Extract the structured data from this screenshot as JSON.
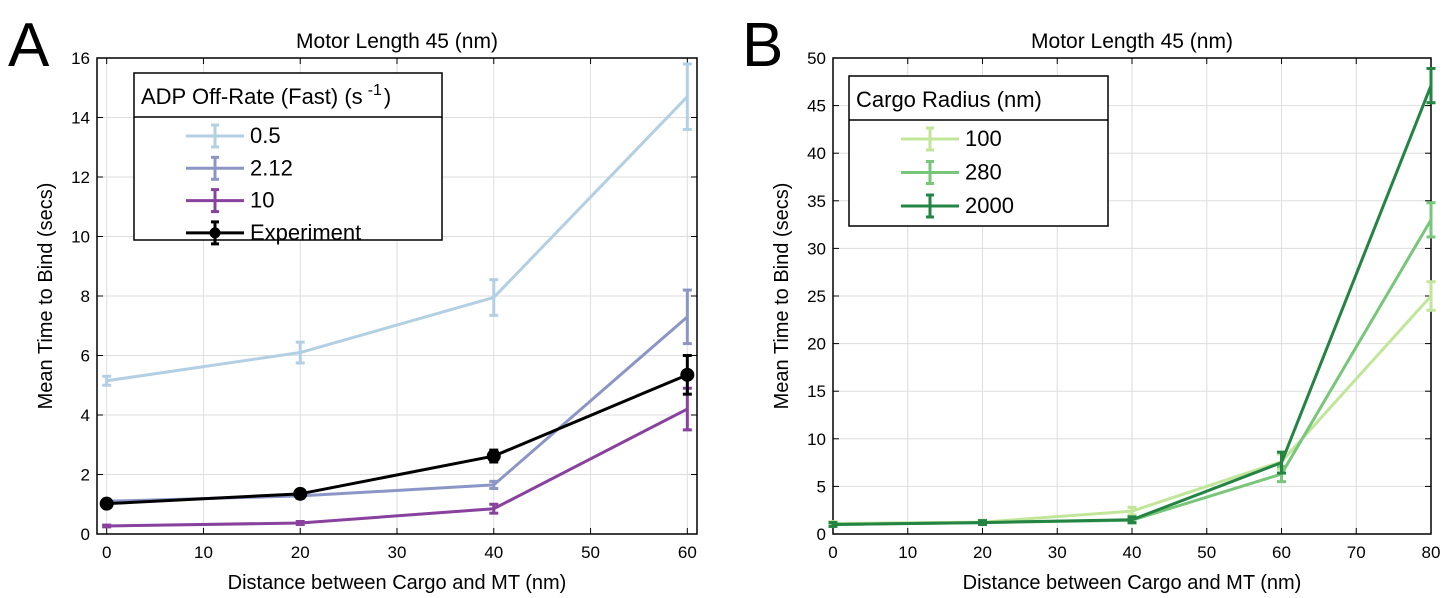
{
  "chart_data": [
    {
      "panel_label": "A",
      "type": "line",
      "title": "Motor Length 45 (nm)",
      "xlabel": "Distance between Cargo and MT (nm)",
      "ylabel": "Mean Time to Bind (secs)",
      "xlim": [
        -1,
        61
      ],
      "ylim": [
        0,
        16
      ],
      "xticks": [
        0,
        10,
        20,
        30,
        40,
        50,
        60
      ],
      "yticks": [
        0,
        2,
        4,
        6,
        8,
        10,
        12,
        14,
        16
      ],
      "grid": true,
      "legend": {
        "title_main": "ADP Off-Rate (Fast) (s",
        "title_exp": "-1",
        "title_close": ")",
        "placement": "top-left"
      },
      "series": [
        {
          "name": "0.5",
          "color": "#b3cfe3",
          "marker": "none",
          "x": [
            0,
            20,
            40,
            60
          ],
          "y": [
            5.15,
            6.1,
            7.95,
            14.7
          ],
          "err": [
            0.15,
            0.35,
            0.6,
            1.1
          ]
        },
        {
          "name": "2.12",
          "color": "#8c96c6",
          "marker": "none",
          "x": [
            0,
            20,
            40,
            60
          ],
          "y": [
            1.1,
            1.28,
            1.65,
            7.3
          ],
          "err": [
            0.05,
            0.08,
            0.12,
            0.9
          ]
        },
        {
          "name": "10",
          "color": "#88419d",
          "marker": "none",
          "x": [
            0,
            20,
            40,
            60
          ],
          "y": [
            0.27,
            0.37,
            0.85,
            4.2
          ],
          "err": [
            0.03,
            0.05,
            0.15,
            0.7
          ]
        },
        {
          "name": "Experiment",
          "color": "#000000",
          "marker": "circle",
          "x": [
            0,
            20,
            40,
            60
          ],
          "y": [
            1.02,
            1.35,
            2.62,
            5.35
          ],
          "err": [
            0.1,
            0.1,
            0.2,
            0.65
          ]
        }
      ]
    },
    {
      "panel_label": "B",
      "type": "line",
      "title": "Motor Length 45 (nm)",
      "xlabel": "Distance between Cargo and MT (nm)",
      "ylabel": "Mean Time to Bind (secs)",
      "xlim": [
        0,
        80
      ],
      "ylim": [
        0,
        50
      ],
      "xticks": [
        0,
        10,
        20,
        30,
        40,
        50,
        60,
        70,
        80
      ],
      "yticks": [
        0,
        5,
        10,
        15,
        20,
        25,
        30,
        35,
        40,
        45,
        50
      ],
      "grid": true,
      "legend": {
        "title_main": "Cargo Radius (nm)",
        "title_exp": "",
        "title_close": "",
        "placement": "top-left"
      },
      "series": [
        {
          "name": "100",
          "color": "#c2e699",
          "marker": "none",
          "x": [
            0,
            20,
            40,
            60,
            80
          ],
          "y": [
            1.1,
            1.25,
            2.4,
            7.6,
            25.0
          ],
          "err": [
            0.2,
            0.2,
            0.4,
            0.8,
            1.5
          ]
        },
        {
          "name": "280",
          "color": "#78c679",
          "marker": "none",
          "x": [
            0,
            20,
            40,
            60,
            80
          ],
          "y": [
            1.0,
            1.2,
            1.45,
            6.3,
            33.0
          ],
          "err": [
            0.2,
            0.2,
            0.3,
            0.8,
            1.8
          ]
        },
        {
          "name": "2000",
          "color": "#238443",
          "marker": "none",
          "x": [
            0,
            20,
            40,
            60,
            80
          ],
          "y": [
            1.0,
            1.2,
            1.5,
            7.5,
            47.1
          ],
          "err": [
            0.2,
            0.2,
            0.3,
            1.1,
            1.8
          ]
        }
      ]
    }
  ]
}
